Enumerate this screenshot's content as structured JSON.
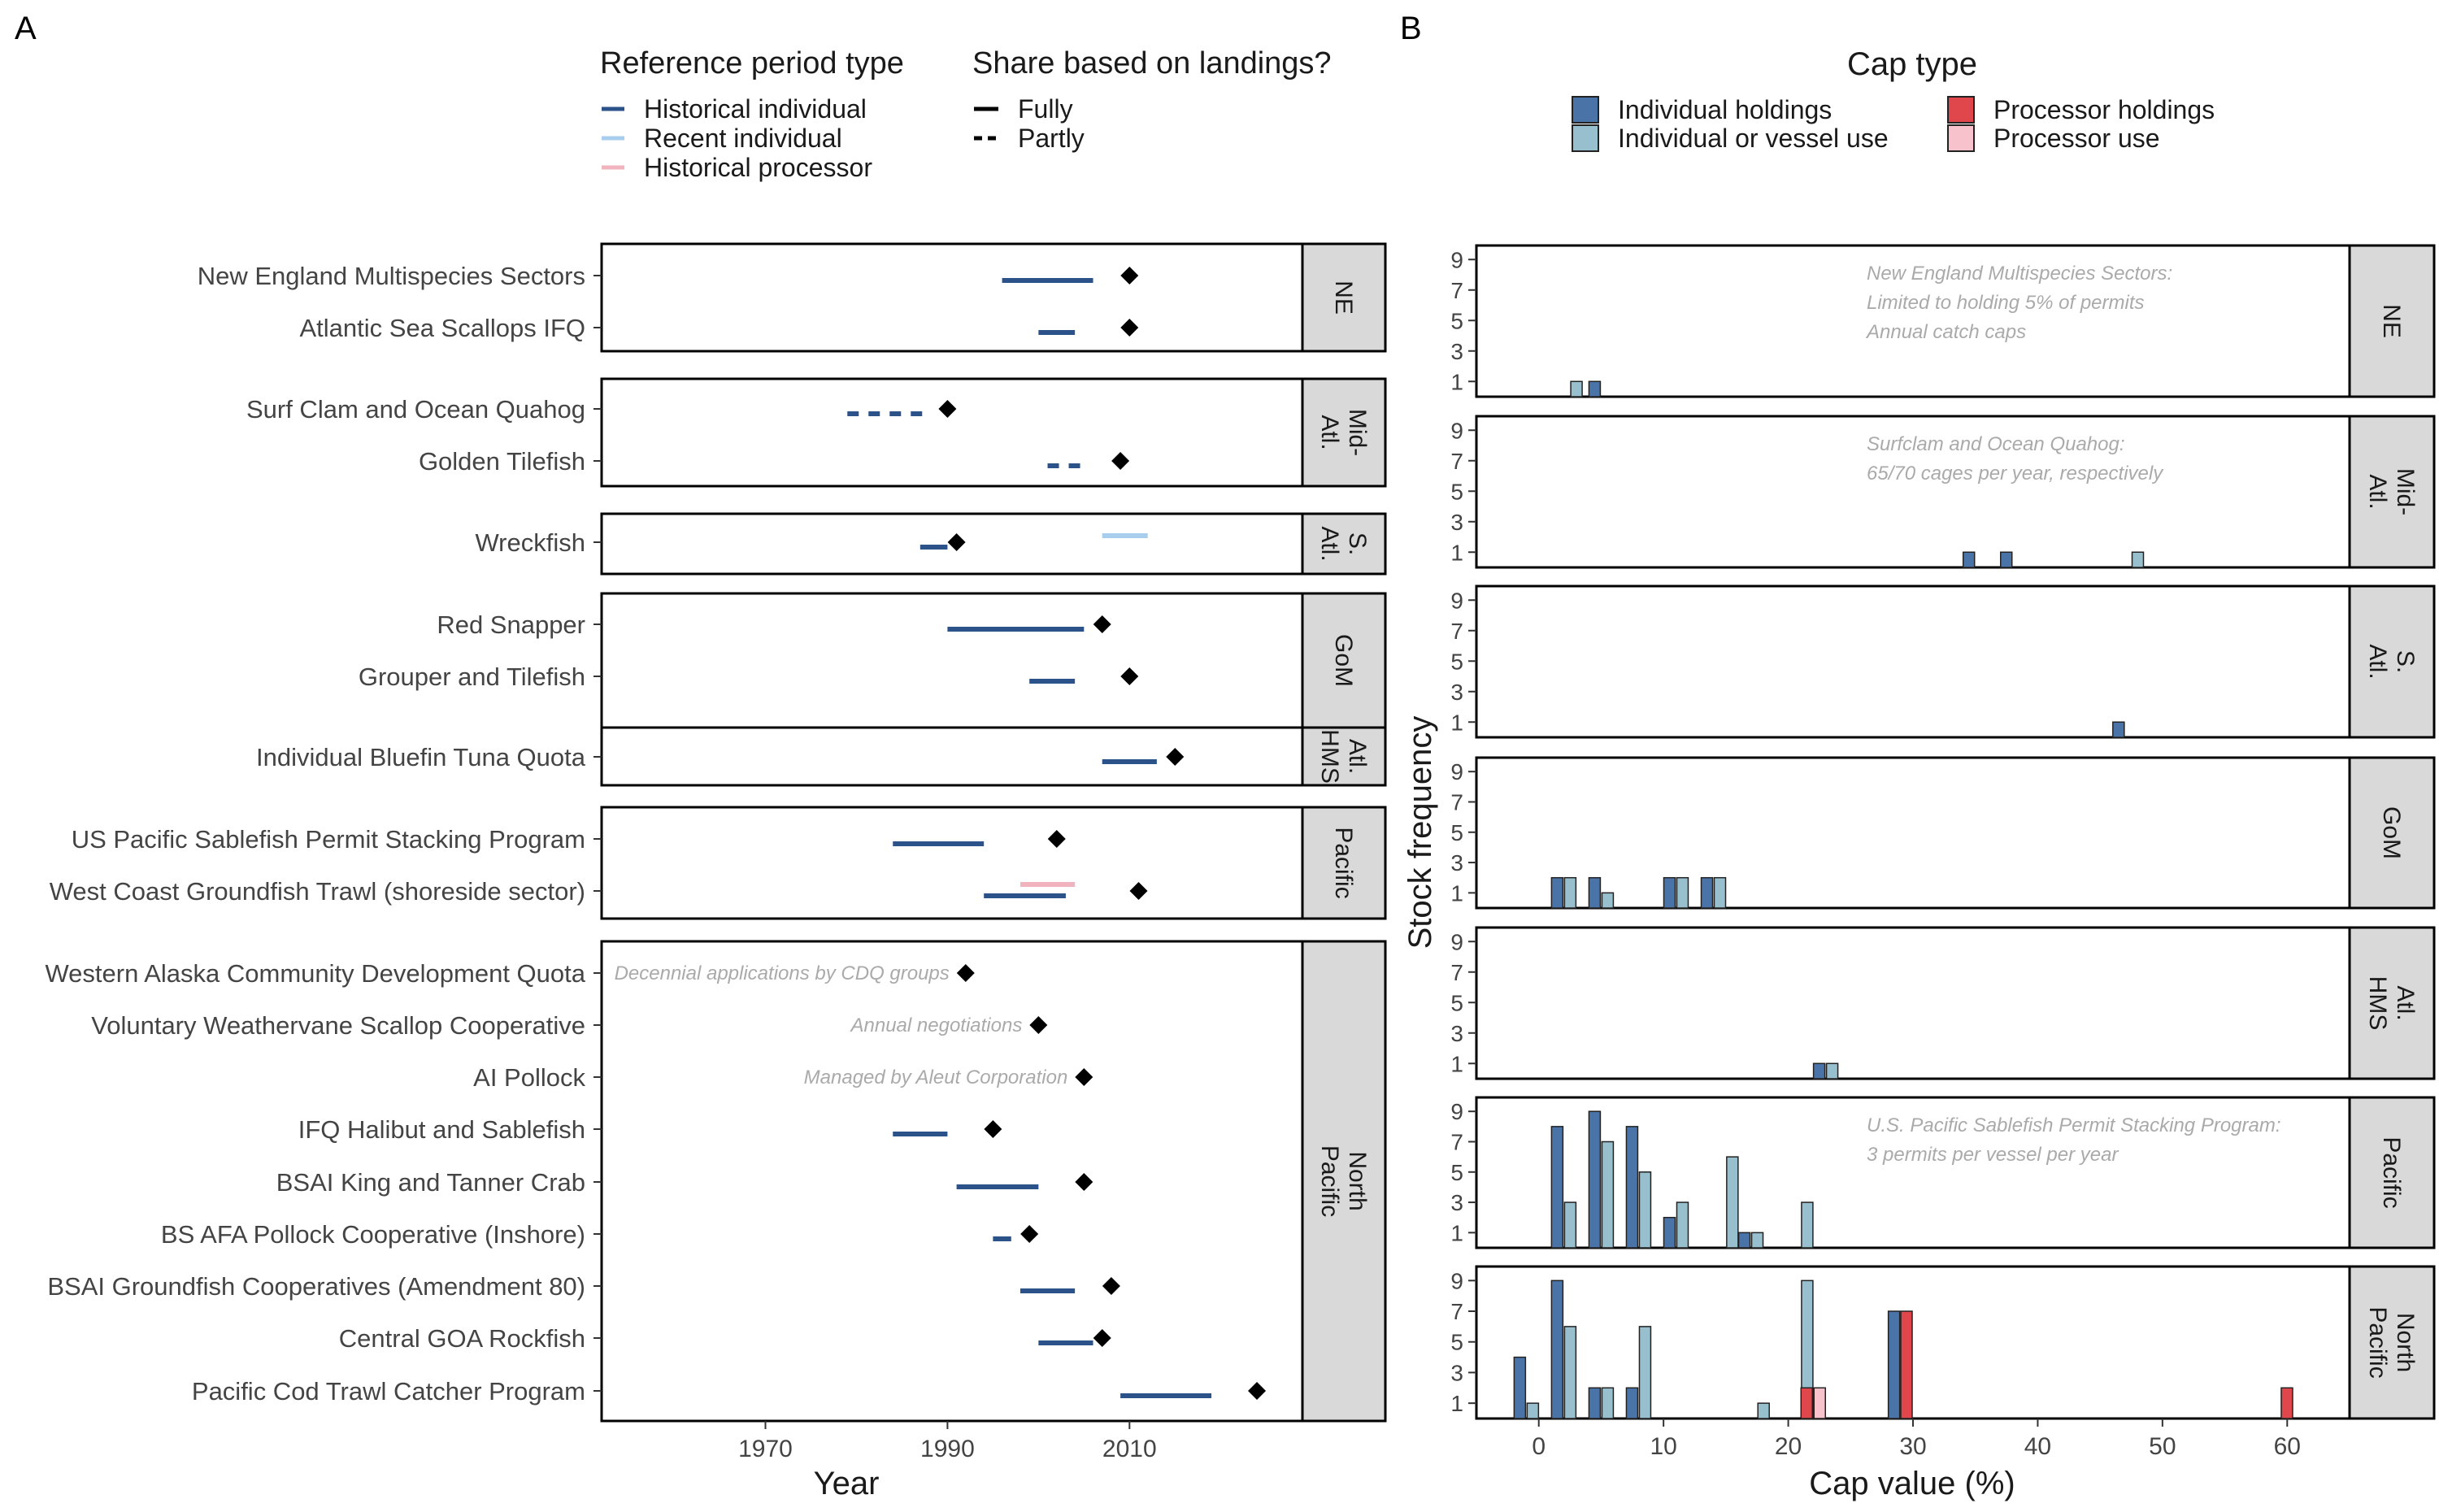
{
  "panel_a": {
    "letter": "A",
    "legend_ref": {
      "title": "Reference period type",
      "items": [
        {
          "label": "Historical individual",
          "color": "#2b5289"
        },
        {
          "label": "Recent individual",
          "color": "#a9cdec"
        },
        {
          "label": "Historical processor",
          "color": "#f1b3bd"
        }
      ]
    },
    "legend_share": {
      "title": "Share based on landings?",
      "items": [
        {
          "label": "Fully",
          "dash": "solid"
        },
        {
          "label": "Partly",
          "dash": "dashed"
        }
      ]
    }
  },
  "panel_b": {
    "letter": "B",
    "legend": {
      "title": "Cap type",
      "items": [
        {
          "label": "Individual holdings",
          "color": "#4a74a8"
        },
        {
          "label": "Processor holdings",
          "color": "#e0474c"
        },
        {
          "label": "Individual or vessel use",
          "color": "#98bfce"
        },
        {
          "label": "Processor use",
          "color": "#f7c2cc"
        }
      ]
    }
  },
  "chart_data": [
    {
      "type": "timeline",
      "panel": "A",
      "xlabel": "Year",
      "xlim": [
        1952,
        2029
      ],
      "xticks": [
        1970,
        1990,
        2010
      ],
      "marker": "diamond",
      "regions": [
        {
          "name": "NE",
          "programs": [
            {
              "name": "New England Multispecies Sectors",
              "segments": [
                {
                  "start": 1996,
                  "end": 2006,
                  "type": "Historical individual",
                  "share": "Fully"
                }
              ],
              "implemented": 2010
            },
            {
              "name": "Atlantic Sea Scallops IFQ",
              "segments": [
                {
                  "start": 2000,
                  "end": 2004,
                  "type": "Historical individual",
                  "share": "Fully"
                }
              ],
              "implemented": 2010
            }
          ]
        },
        {
          "name": "Mid-\nAtl.",
          "programs": [
            {
              "name": "Surf Clam and Ocean Quahog",
              "segments": [
                {
                  "start": 1979,
                  "end": 1988,
                  "type": "Historical individual",
                  "share": "Partly"
                }
              ],
              "implemented": 1990
            },
            {
              "name": "Golden Tilefish",
              "segments": [
                {
                  "start": 2001,
                  "end": 2005,
                  "type": "Historical individual",
                  "share": "Partly"
                }
              ],
              "implemented": 2009
            }
          ]
        },
        {
          "name": "S.\nAtl.",
          "programs": [
            {
              "name": "Wreckfish",
              "segments": [
                {
                  "start": 1987,
                  "end": 1990,
                  "type": "Historical individual",
                  "share": "Fully"
                },
                {
                  "start": 2007,
                  "end": 2012,
                  "type": "Recent individual",
                  "share": "Fully"
                }
              ],
              "implemented": 1991
            }
          ]
        },
        {
          "name": "GoM",
          "programs": [
            {
              "name": "Red Snapper",
              "segments": [
                {
                  "start": 1990,
                  "end": 2005,
                  "type": "Historical individual",
                  "share": "Fully"
                }
              ],
              "implemented": 2007
            },
            {
              "name": "Grouper and Tilefish",
              "segments": [
                {
                  "start": 1999,
                  "end": 2004,
                  "type": "Historical individual",
                  "share": "Fully"
                }
              ],
              "implemented": 2010
            }
          ]
        },
        {
          "name": "Atl.\nHMS",
          "programs": [
            {
              "name": "Individual Bluefin Tuna Quota",
              "segments": [
                {
                  "start": 2007,
                  "end": 2013,
                  "type": "Historical individual",
                  "share": "Fully"
                }
              ],
              "implemented": 2015
            }
          ]
        },
        {
          "name": "Pacific",
          "programs": [
            {
              "name": "US Pacific Sablefish Permit Stacking Program",
              "segments": [
                {
                  "start": 1984,
                  "end": 1994,
                  "type": "Historical individual",
                  "share": "Fully"
                }
              ],
              "implemented": 2002
            },
            {
              "name": "West Coast Groundfish Trawl (shoreside sector)",
              "segments": [
                {
                  "start": 1994,
                  "end": 2003,
                  "type": "Historical individual",
                  "share": "Fully"
                },
                {
                  "start": 1998,
                  "end": 2004,
                  "type": "Historical processor",
                  "share": "Fully"
                }
              ],
              "implemented": 2011
            }
          ]
        },
        {
          "name": "North\nPacific",
          "programs": [
            {
              "name": "Western Alaska Community Development Quota",
              "segments": [],
              "implemented": 1992,
              "annotation": "Decennial applications by CDQ groups"
            },
            {
              "name": "Voluntary Weathervane Scallop Cooperative",
              "segments": [],
              "implemented": 2000,
              "annotation": "Annual negotiations"
            },
            {
              "name": "AI Pollock",
              "segments": [],
              "implemented": 2005,
              "annotation": "Managed by Aleut Corporation"
            },
            {
              "name": "IFQ Halibut and Sablefish",
              "segments": [
                {
                  "start": 1984,
                  "end": 1990,
                  "type": "Historical individual",
                  "share": "Fully"
                }
              ],
              "implemented": 1995
            },
            {
              "name": "BSAI King and Tanner Crab",
              "segments": [
                {
                  "start": 1991,
                  "end": 2000,
                  "type": "Historical individual",
                  "share": "Fully"
                }
              ],
              "implemented": 2005
            },
            {
              "name": "BS AFA Pollock Cooperative (Inshore)",
              "segments": [
                {
                  "start": 1995,
                  "end": 1997,
                  "type": "Historical individual",
                  "share": "Fully"
                }
              ],
              "implemented": 1999
            },
            {
              "name": "BSAI Groundfish Cooperatives (Amendment 80)",
              "segments": [
                {
                  "start": 1998,
                  "end": 2004,
                  "type": "Historical individual",
                  "share": "Fully"
                }
              ],
              "implemented": 2008
            },
            {
              "name": "Central GOA Rockfish",
              "segments": [
                {
                  "start": 2000,
                  "end": 2006,
                  "type": "Historical individual",
                  "share": "Fully"
                }
              ],
              "implemented": 2007
            },
            {
              "name": "Pacific Cod Trawl Catcher Program",
              "segments": [
                {
                  "start": 2009,
                  "end": 2019,
                  "type": "Historical individual",
                  "share": "Fully"
                }
              ],
              "implemented": 2024
            }
          ]
        }
      ]
    },
    {
      "type": "bar",
      "panel": "B",
      "xlabel": "Cap value (%)",
      "ylabel": "Stock frequency",
      "xlim": [
        -5,
        65
      ],
      "xticks": [
        0,
        10,
        20,
        30,
        40,
        50,
        60
      ],
      "ylim": [
        0,
        9.6
      ],
      "yticks": [
        1,
        3,
        5,
        7,
        9
      ],
      "facets": [
        {
          "name": "NE",
          "note": [
            "New England Multispecies Sectors:",
            "Limited to holding 5% of permits",
            "Annual catch caps"
          ],
          "bars": [
            {
              "x": 2.5,
              "cap": "Individual or vessel use",
              "count": 1
            },
            {
              "x": 5,
              "cap": "Individual holdings",
              "count": 1
            }
          ]
        },
        {
          "name": "Mid-\nAtl.",
          "note": [
            "Surfclam and Ocean Quahog:",
            "65/70 cages per year, respectively"
          ],
          "bars": [
            {
              "x": 35,
              "cap": "Individual holdings",
              "count": 1
            },
            {
              "x": 38,
              "cap": "Individual holdings",
              "count": 1
            },
            {
              "x": 47.5,
              "cap": "Individual or vessel use",
              "count": 1
            }
          ]
        },
        {
          "name": "S.\nAtl.",
          "note": [],
          "bars": [
            {
              "x": 47,
              "cap": "Individual holdings",
              "count": 1
            }
          ]
        },
        {
          "name": "GoM",
          "note": [],
          "bars": [
            {
              "x": 2,
              "cap": "Individual holdings",
              "count": 2
            },
            {
              "x": 2,
              "cap": "Individual or vessel use",
              "count": 2
            },
            {
              "x": 5,
              "cap": "Individual holdings",
              "count": 2
            },
            {
              "x": 5,
              "cap": "Individual or vessel use",
              "count": 1
            },
            {
              "x": 11,
              "cap": "Individual holdings",
              "count": 2
            },
            {
              "x": 11,
              "cap": "Individual or vessel use",
              "count": 2
            },
            {
              "x": 14,
              "cap": "Individual holdings",
              "count": 2
            },
            {
              "x": 14,
              "cap": "Individual or vessel use",
              "count": 2
            }
          ]
        },
        {
          "name": "Atl.\nHMS",
          "note": [],
          "bars": [
            {
              "x": 23,
              "cap": "Individual holdings",
              "count": 1
            },
            {
              "x": 23,
              "cap": "Individual or vessel use",
              "count": 1
            }
          ]
        },
        {
          "name": "Pacific",
          "note": [
            "U.S. Pacific Sablefish Permit Stacking Program:",
            "3 permits per vessel per year"
          ],
          "bars": [
            {
              "x": 2,
              "cap": "Individual holdings",
              "count": 8
            },
            {
              "x": 2,
              "cap": "Individual or vessel use",
              "count": 3
            },
            {
              "x": 5,
              "cap": "Individual holdings",
              "count": 9
            },
            {
              "x": 5,
              "cap": "Individual or vessel use",
              "count": 7
            },
            {
              "x": 8,
              "cap": "Individual holdings",
              "count": 8
            },
            {
              "x": 8,
              "cap": "Individual or vessel use",
              "count": 5
            },
            {
              "x": 11,
              "cap": "Individual holdings",
              "count": 2
            },
            {
              "x": 11,
              "cap": "Individual or vessel use",
              "count": 3
            },
            {
              "x": 15,
              "cap": "Individual or vessel use",
              "count": 6
            },
            {
              "x": 17,
              "cap": "Individual holdings",
              "count": 1
            },
            {
              "x": 17,
              "cap": "Individual or vessel use",
              "count": 1
            },
            {
              "x": 21,
              "cap": "Individual or vessel use",
              "count": 3
            }
          ]
        },
        {
          "name": "North\nPacific",
          "note": [],
          "bars": [
            {
              "x": -1,
              "cap": "Individual holdings",
              "count": 4
            },
            {
              "x": -1,
              "cap": "Individual or vessel use",
              "count": 1
            },
            {
              "x": 2,
              "cap": "Individual holdings",
              "count": 9
            },
            {
              "x": 2,
              "cap": "Individual or vessel use",
              "count": 6
            },
            {
              "x": 5,
              "cap": "Individual holdings",
              "count": 2
            },
            {
              "x": 5,
              "cap": "Individual or vessel use",
              "count": 2
            },
            {
              "x": 8,
              "cap": "Individual holdings",
              "count": 2
            },
            {
              "x": 8,
              "cap": "Individual or vessel use",
              "count": 6
            },
            {
              "x": 17.5,
              "cap": "Individual or vessel use",
              "count": 1
            },
            {
              "x": 21,
              "cap": "Individual or vessel use",
              "count": 9
            },
            {
              "x": 22,
              "cap": "Processor holdings",
              "count": 2
            },
            {
              "x": 22,
              "cap": "Processor use",
              "count": 2
            },
            {
              "x": 29,
              "cap": "Individual holdings",
              "count": 7
            },
            {
              "x": 30,
              "cap": "Processor holdings",
              "count": 7
            },
            {
              "x": 60.5,
              "cap": "Processor holdings",
              "count": 2
            }
          ]
        }
      ]
    }
  ]
}
